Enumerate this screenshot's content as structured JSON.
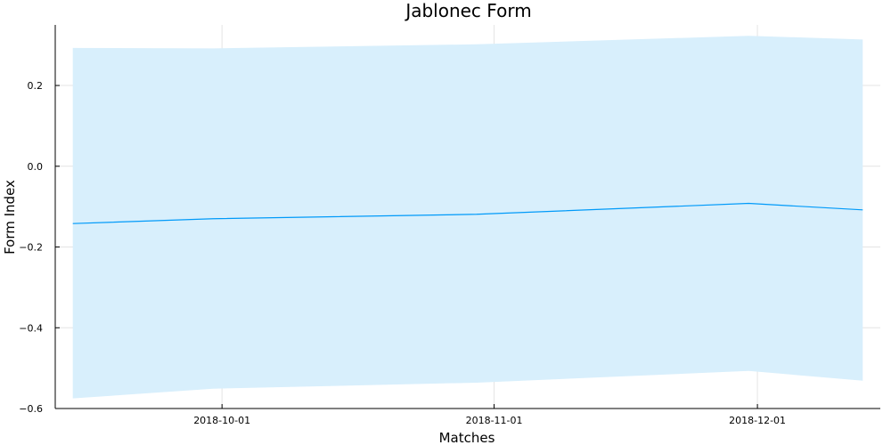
{
  "chart_data": {
    "type": "area",
    "title": "Jablonec Form",
    "xlabel": "Matches",
    "ylabel": "Form Index",
    "x": [
      "2018-09-14",
      "2018-09-30",
      "2018-10-30",
      "2018-11-30",
      "2018-12-13"
    ],
    "series": [
      {
        "values": [
          -0.142,
          -0.13,
          -0.119,
          -0.092,
          -0.108
        ],
        "lower": [
          -0.575,
          -0.551,
          -0.536,
          -0.507,
          -0.531
        ],
        "upper": [
          0.293,
          0.292,
          0.302,
          0.323,
          0.314
        ]
      }
    ],
    "xlim": [
      "2018-09-12",
      "2018-12-15"
    ],
    "ylim": [
      -0.6,
      0.35
    ],
    "xticks": [
      "2018-10-01",
      "2018-11-01",
      "2018-12-01"
    ],
    "yticks": [
      0.2,
      0.0,
      -0.2,
      -0.4,
      -0.6
    ],
    "ytick_labels": [
      "0.2",
      "0.0",
      "−0.2",
      "−0.4",
      "−0.6"
    ],
    "grid": true,
    "legend": false,
    "colors": {
      "line": "#009af9",
      "band": "#d8effc"
    }
  }
}
